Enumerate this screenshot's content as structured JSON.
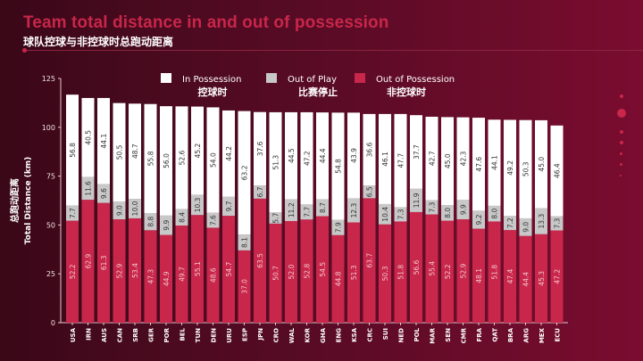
{
  "header": {
    "title": "Team total distance in and out of possession",
    "subtitle": "球队控球与非控球时总跑动距离"
  },
  "chart_data": {
    "type": "bar",
    "stacked": true,
    "title": "Team total distance in and out of possession",
    "subtitle": "球队控球与非控球时总跑动距离",
    "ylabel": "总跑动距离",
    "ylabel_en": "Total Distance (km)",
    "xlabel": "",
    "ylim": [
      0,
      125
    ],
    "yticks": [
      "0",
      "25",
      "50",
      "75",
      "100",
      "125"
    ],
    "grid": false,
    "legend_position": "top",
    "categories": [
      "USA",
      "IRN",
      "AUS",
      "CAN",
      "SRB",
      "GER",
      "POR",
      "BEL",
      "TUN",
      "DEN",
      "URU",
      "ESP",
      "JPN",
      "CRO",
      "WAL",
      "KOR",
      "GHA",
      "ENG",
      "KSA",
      "CRC",
      "SUI",
      "NED",
      "POL",
      "MAR",
      "SEN",
      "CMR",
      "FRA",
      "QAT",
      "BRA",
      "ARG",
      "MEX",
      "ECU"
    ],
    "series": [
      {
        "name": "Out of Possession",
        "name_zh": "非控球时",
        "color": "#c8264a",
        "label_color": "#f4c6cf",
        "values": [
          52.2,
          62.9,
          61.3,
          52.9,
          53.4,
          47.3,
          44.9,
          49.7,
          55.1,
          48.6,
          54.7,
          37.0,
          63.5,
          50.7,
          52.0,
          52.8,
          54.5,
          44.8,
          51.3,
          63.7,
          50.3,
          51.8,
          56.6,
          55.4,
          52.2,
          52.9,
          48.1,
          51.8,
          47.4,
          44.4,
          45.3,
          47.2
        ]
      },
      {
        "name": "Out of Play",
        "name_zh": "比赛停止",
        "color": "#c8c8c8",
        "label_color": "#333333",
        "values": [
          7.7,
          11.6,
          9.6,
          9.0,
          10.0,
          8.8,
          9.9,
          8.4,
          10.3,
          7.6,
          9.7,
          8.1,
          6.7,
          5.7,
          11.2,
          7.7,
          8.7,
          7.9,
          12.3,
          6.5,
          10.4,
          7.3,
          11.9,
          7.3,
          8.0,
          9.9,
          9.2,
          8.0,
          7.2,
          9.0,
          13.3,
          7.3
        ]
      },
      {
        "name": "In Possession",
        "name_zh": "控球时",
        "color": "#ffffff",
        "label_color": "#333333",
        "values": [
          56.8,
          40.5,
          44.1,
          50.5,
          48.7,
          55.8,
          56.0,
          52.6,
          45.2,
          54.0,
          44.2,
          63.2,
          37.6,
          51.3,
          44.5,
          47.2,
          44.4,
          54.8,
          43.9,
          36.6,
          46.1,
          47.7,
          37.7,
          42.7,
          45.0,
          42.3,
          47.6,
          44.1,
          49.2,
          50.3,
          45.0,
          46.4
        ]
      }
    ],
    "legend_order": [
      "In Possession",
      "Out of Play",
      "Out of Possession"
    ]
  }
}
